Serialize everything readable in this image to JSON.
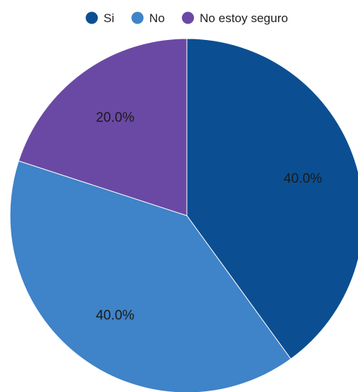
{
  "chart_data": {
    "type": "pie",
    "categories": [
      "Si",
      "No",
      "No estoy seguro"
    ],
    "values": [
      40.0,
      40.0,
      20.0
    ],
    "value_labels": [
      "40.0%",
      "40.0%",
      "20.0%"
    ],
    "colors": [
      "#0b4f92",
      "#3f83c8",
      "#6a49a5"
    ],
    "legend_position": "top",
    "start_angle": "12 o'clock, clockwise"
  }
}
